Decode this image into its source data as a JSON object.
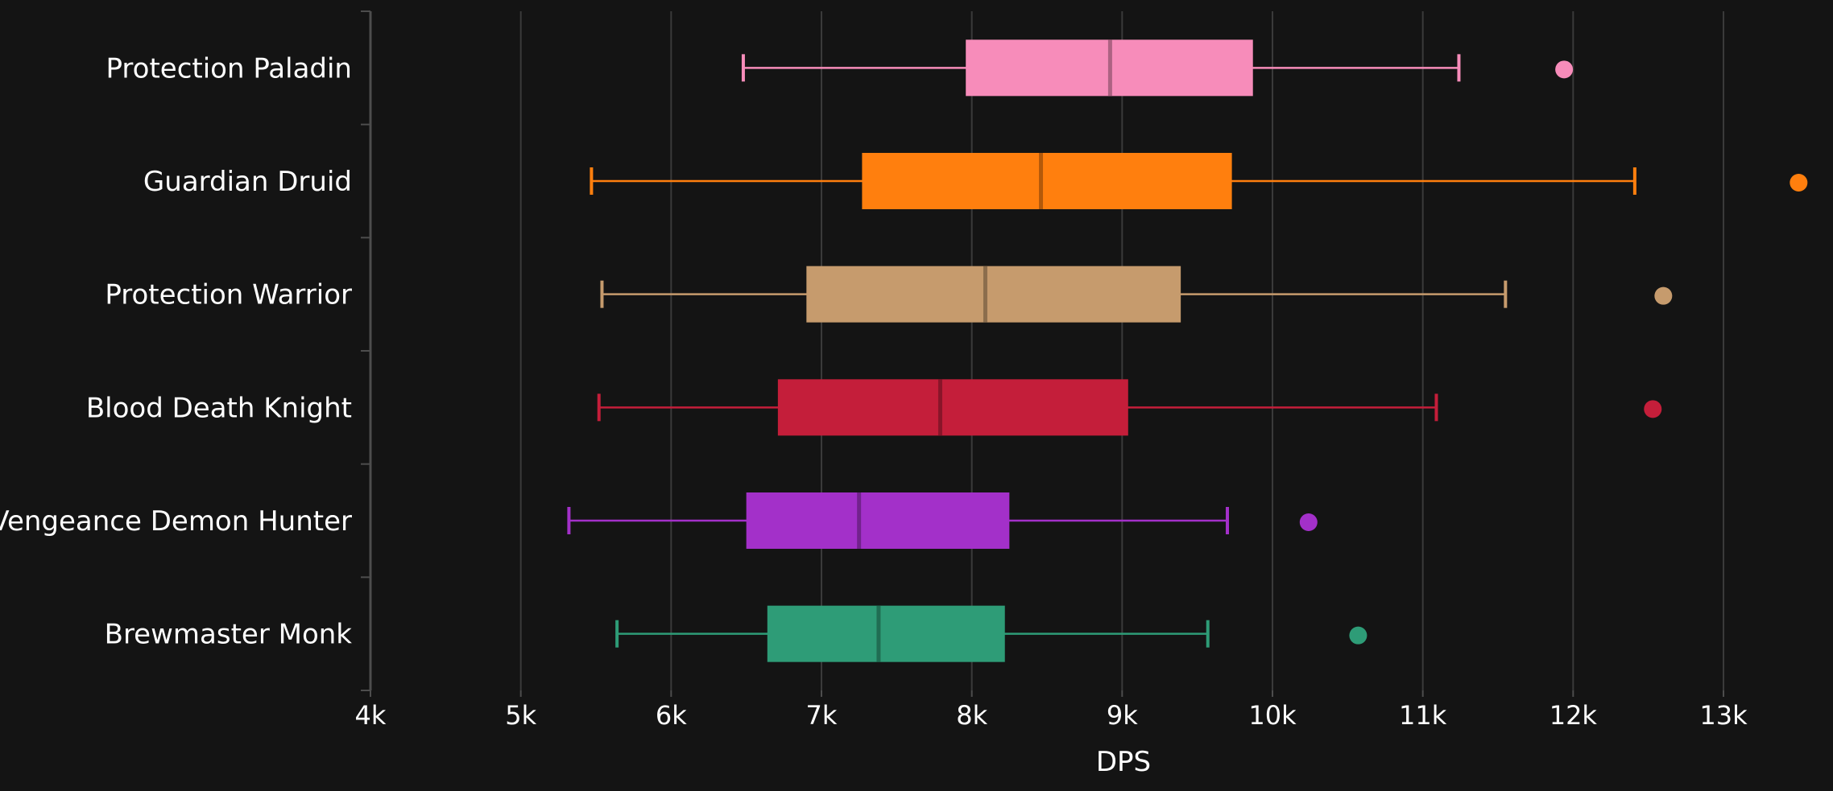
{
  "chart_data": {
    "type": "box",
    "orientation": "horizontal",
    "xlabel": "DPS",
    "ylabel": "",
    "xlim": [
      4000,
      13000
    ],
    "xticks": [
      4000,
      5000,
      6000,
      7000,
      8000,
      9000,
      10000,
      11000,
      12000,
      13000
    ],
    "xtick_labels": [
      "4k",
      "5k",
      "6k",
      "7k",
      "8k",
      "9k",
      "10k",
      "11k",
      "12k",
      "13k"
    ],
    "grid": "vertical",
    "categories": [
      "Protection Paladin",
      "Guardian Druid",
      "Protection Warrior",
      "Blood Death Knight",
      "Vengeance Demon Hunter",
      "Brewmaster Monk"
    ],
    "series": [
      {
        "category": "Protection Paladin",
        "color": "#f78cba",
        "whisker_low": 6480,
        "q1": 7960,
        "median": 8920,
        "q3": 9870,
        "whisker_high": 11240,
        "outliers": [
          11940
        ]
      },
      {
        "category": "Guardian Druid",
        "color": "#ff7f0e",
        "whisker_low": 5470,
        "q1": 7270,
        "median": 8460,
        "q3": 9730,
        "whisker_high": 12410,
        "outliers": [
          13500
        ]
      },
      {
        "category": "Protection Warrior",
        "color": "#c69b6d",
        "whisker_low": 5540,
        "q1": 6900,
        "median": 8090,
        "q3": 9390,
        "whisker_high": 11550,
        "outliers": [
          12600
        ]
      },
      {
        "category": "Blood Death Knight",
        "color": "#c41e3a",
        "whisker_low": 5520,
        "q1": 6710,
        "median": 7790,
        "q3": 9040,
        "whisker_high": 11090,
        "outliers": [
          12530
        ]
      },
      {
        "category": "Vengeance Demon Hunter",
        "color": "#a330c9",
        "whisker_low": 5320,
        "q1": 6500,
        "median": 7250,
        "q3": 8250,
        "whisker_high": 9700,
        "outliers": [
          10240
        ]
      },
      {
        "category": "Brewmaster Monk",
        "color": "#2e9c77",
        "whisker_low": 5640,
        "q1": 6640,
        "median": 7380,
        "q3": 8220,
        "whisker_high": 9570,
        "outliers": [
          10570
        ]
      }
    ],
    "colors": {
      "background": "#141414",
      "grid": "#3a3a3a",
      "axis": "#4d4d4d",
      "text": "#ffffff"
    }
  }
}
